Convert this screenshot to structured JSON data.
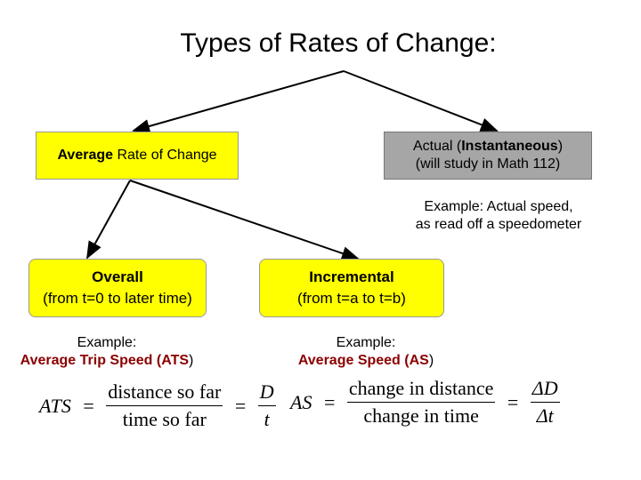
{
  "title": "Types of Rates of Change:",
  "avg_box": {
    "bold": "Average",
    "rest": " Rate of Change"
  },
  "inst_box": {
    "line1_pre": "Actual (",
    "line1_bold": "Instantaneous",
    "line1_post": ")",
    "line2": "(will study in Math 112)"
  },
  "inst_example": {
    "line1": "Example: Actual speed,",
    "line2": "as read off a speedometer"
  },
  "overall_box": {
    "title": "Overall",
    "sub": "(from t=0 to later time)"
  },
  "incremental_box": {
    "title": "Incremental",
    "sub": "(from t=a to t=b)"
  },
  "left_example": {
    "line1": "Example:",
    "line2_pre": "Average Trip Speed (",
    "line2_abbr": "ATS",
    "line2_post": ")"
  },
  "right_example": {
    "line1": "Example:",
    "line2_pre": "Average Speed (",
    "line2_abbr": "AS",
    "line2_post": ")"
  },
  "formula_left": {
    "lhs": "ATS",
    "eq": "=",
    "num": "distance so far",
    "den": "time so far",
    "eq2": "=",
    "num2": "D",
    "den2": "t"
  },
  "formula_right": {
    "lhs": "AS",
    "eq": "=",
    "num": "change in distance",
    "den": "change in time",
    "eq2": "=",
    "num2": "ΔD",
    "den2": "Δt"
  },
  "colors": {
    "yellow": "#ffff00",
    "gray": "#a6a6a6",
    "dark_red": "#8b0000"
  }
}
